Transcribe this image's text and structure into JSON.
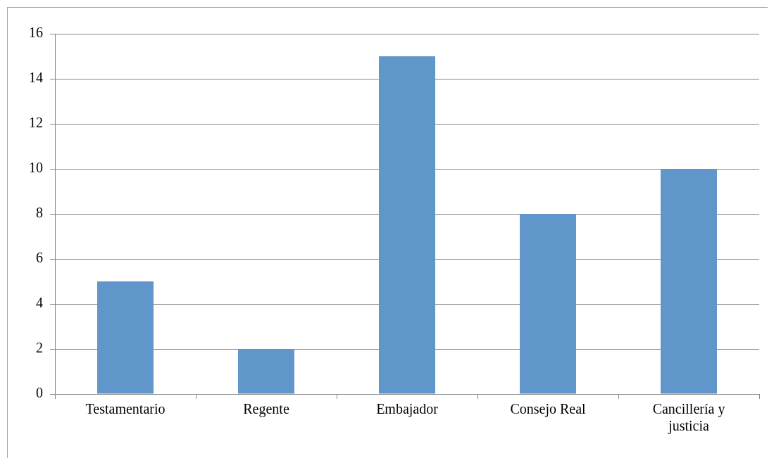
{
  "chart_data": {
    "type": "bar",
    "categories": [
      "Testamentario",
      "Regente",
      "Embajador",
      "Consejo Real",
      "Cancillería y justicia"
    ],
    "values": [
      5,
      2,
      15,
      8,
      10
    ],
    "color": "#6096c9",
    "ylim": [
      0,
      16
    ],
    "yticks": [
      0,
      2,
      4,
      6,
      8,
      10,
      12,
      14,
      16
    ],
    "grid": "y",
    "legend": false
  }
}
